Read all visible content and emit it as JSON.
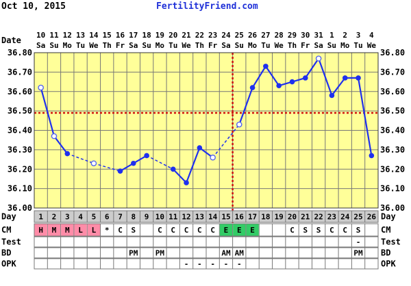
{
  "header": {
    "date": "Oct 10, 2015",
    "site": "FertilityFriend.com"
  },
  "colors": {
    "plot_bg": "#ffff99",
    "grid": "#777777",
    "line": "#1f30ee",
    "marker_fill": "#1f30ee",
    "open_marker_stroke": "#5566ee",
    "coverline": "#d01010",
    "day_row_bg": "#cccccc",
    "menstrual_bg": "#ff8ca8",
    "egg_white_bg": "#33cc66"
  },
  "chart_data": {
    "type": "line",
    "row_labels": {
      "date": "Date",
      "day": "Day",
      "cm": "CM",
      "test": "Test",
      "bd": "BD",
      "opk": "OPK"
    },
    "dates": [
      "10",
      "11",
      "12",
      "13",
      "14",
      "15",
      "16",
      "17",
      "18",
      "19",
      "20",
      "21",
      "22",
      "23",
      "24",
      "25",
      "26",
      "27",
      "28",
      "29",
      "30",
      "31",
      "1",
      "2",
      "3",
      "4"
    ],
    "weekdays": [
      "Sa",
      "Su",
      "Mo",
      "Tu",
      "We",
      "Th",
      "Fr",
      "Sa",
      "Su",
      "Mo",
      "Tu",
      "We",
      "Th",
      "Fr",
      "Sa",
      "Su",
      "Mo",
      "Tu",
      "We",
      "Th",
      "Fr",
      "Sa",
      "Su",
      "Mo",
      "Tu",
      "We"
    ],
    "days": [
      "1",
      "2",
      "3",
      "4",
      "5",
      "6",
      "7",
      "8",
      "9",
      "10",
      "11",
      "12",
      "13",
      "14",
      "15",
      "16",
      "17",
      "18",
      "19",
      "20",
      "21",
      "22",
      "23",
      "24",
      "25",
      "26"
    ],
    "y_ticks": [
      "36.00",
      "36.10",
      "36.20",
      "36.30",
      "36.40",
      "36.50",
      "36.60",
      "36.70",
      "36.80"
    ],
    "ylim": [
      36.0,
      36.8
    ],
    "temps": [
      36.62,
      36.37,
      36.28,
      null,
      36.23,
      null,
      36.19,
      36.23,
      36.27,
      null,
      36.2,
      36.13,
      36.31,
      36.26,
      null,
      36.43,
      36.62,
      36.73,
      36.63,
      36.65,
      36.67,
      36.77,
      36.58,
      36.67,
      36.67,
      36.27
    ],
    "open_markers": [
      1,
      2,
      5,
      14,
      16,
      22
    ],
    "coverline": 36.49,
    "ovulation_day": 16,
    "cm": [
      "H",
      "M",
      "M",
      "L",
      "L",
      "*",
      "C",
      "S",
      "",
      "C",
      "C",
      "C",
      "C",
      "C",
      "E",
      "E",
      "E",
      "",
      "",
      "C",
      "S",
      "S",
      "C",
      "C",
      "S",
      ""
    ],
    "cm_colors": [
      "pink",
      "pink",
      "pink",
      "pink",
      "pink",
      "",
      "",
      "",
      "",
      "",
      "",
      "",
      "",
      "",
      "green",
      "green",
      "green",
      "",
      "",
      "",
      "",
      "",
      "",
      "",
      "",
      ""
    ],
    "test": [
      "",
      "",
      "",
      "",
      "",
      "",
      "",
      "",
      "",
      "",
      "",
      "",
      "",
      "",
      "",
      "",
      "",
      "",
      "",
      "",
      "",
      "",
      "",
      "",
      "-",
      ""
    ],
    "bd": [
      "",
      "",
      "",
      "",
      "",
      "",
      "",
      "PM",
      "",
      "PM",
      "",
      "",
      "",
      "",
      "AM",
      "AM",
      "",
      "",
      "",
      "",
      "",
      "",
      "",
      "",
      "PM",
      ""
    ],
    "opk": [
      "",
      "",
      "",
      "",
      "",
      "",
      "",
      "",
      "",
      "",
      "",
      "-",
      "-",
      "-",
      "-",
      "-",
      "",
      "",
      "",
      "",
      "",
      "",
      "",
      "",
      "",
      ""
    ]
  }
}
